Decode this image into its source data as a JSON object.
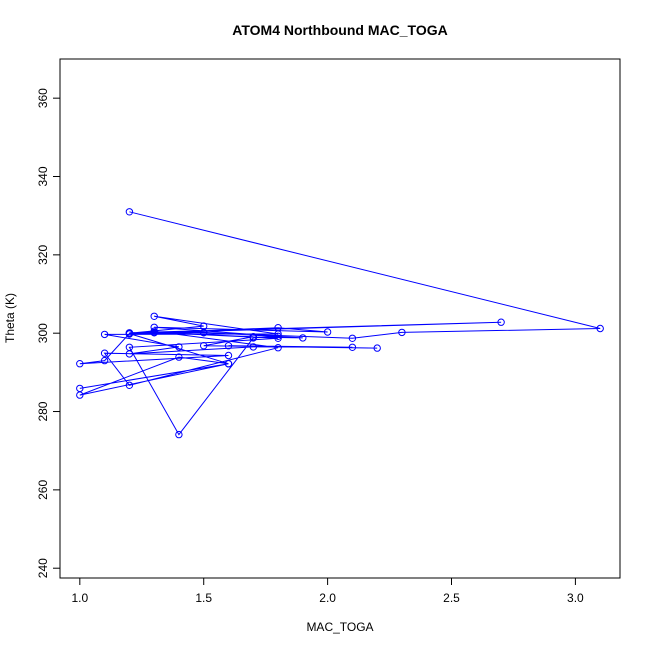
{
  "chart_data": {
    "type": "line",
    "title": "ATOM4 Northbound MAC_TOGA",
    "xlabel": "MAC_TOGA",
    "ylabel": "Theta (K)",
    "xlim": [
      0.92,
      3.18
    ],
    "ylim": [
      237.5,
      370
    ],
    "xticks": [
      "1.0",
      "1.5",
      "2.0",
      "2.5",
      "3.0"
    ],
    "yticks": [
      "240",
      "260",
      "280",
      "300",
      "320",
      "340",
      "360"
    ],
    "grid": false,
    "color": "#0000ff",
    "series": [
      {
        "x": [
          1.2,
          3.1,
          2.3,
          2.1,
          1.5,
          1.2,
          1.8,
          2.0,
          1.3,
          1.8,
          1.7,
          1.4,
          1.2,
          1.8,
          1.3,
          1.7,
          1.9,
          1.5,
          1.2,
          2.7,
          1.3,
          1.7,
          1.5,
          2.2,
          1.6,
          2.1,
          1.7,
          1.2,
          1.4,
          1.1,
          1.8,
          1.3,
          1.5,
          1.2,
          1.3,
          1.8,
          1.2,
          1.1,
          1.6,
          1.0,
          1.1,
          1.2,
          1.6,
          1.4,
          1.0,
          1.6,
          1.0
        ],
        "y": [
          331,
          301.2,
          300.2,
          298.7,
          300.1,
          299.8,
          301.4,
          300.3,
          301.5,
          299.2,
          298.8,
          274.1,
          296.4,
          298.7,
          300.2,
          299,
          298.8,
          300.2,
          300.1,
          302.8,
          300.1,
          299.1,
          296.8,
          296.2,
          296.8,
          296.4,
          296.5,
          294.7,
          296.5,
          299.7,
          299.8,
          304.3,
          301.8,
          300,
          300.5,
          296.3,
          286.7,
          294.9,
          294.3,
          292.2,
          293,
          299.9,
          292.2,
          293.9,
          284.2,
          292.2,
          285.9
        ]
      }
    ]
  }
}
